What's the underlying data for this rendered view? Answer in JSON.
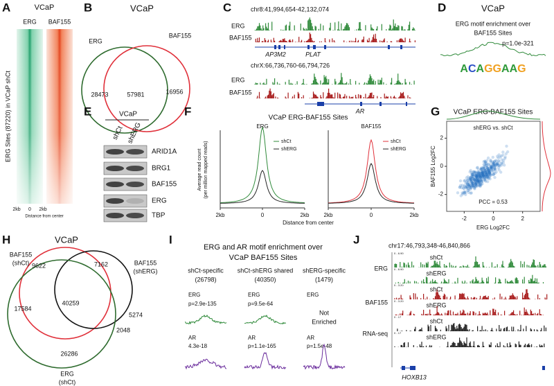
{
  "A": {
    "letter": "A",
    "title": "VCaP",
    "tracks": [
      "ERG",
      "BAF155"
    ],
    "y_label": "ERG Sites (87220) in VCaP shCt",
    "x_ticks": [
      "2kb",
      "0",
      "2kb"
    ],
    "x_label": "Distance from center"
  },
  "B": {
    "letter": "B",
    "title": "VCaP",
    "sets": [
      "ERG",
      "BAF155"
    ],
    "counts": [
      "28473",
      "57981",
      "16956"
    ]
  },
  "C": {
    "letter": "C",
    "loci": [
      {
        "region": "chr8:41,994,654-42,132,074",
        "tracks": [
          "ERG",
          "BAF155"
        ],
        "genes": [
          "AP3M2",
          "PLAT"
        ]
      },
      {
        "region": "chrX:66,736,760-66,794,726",
        "tracks": [
          "ERG",
          "BAF155"
        ],
        "genes": [
          "AR"
        ]
      }
    ]
  },
  "D": {
    "letter": "D",
    "title": "VCaP",
    "subtitle": [
      "ERG motif enrichment over",
      "BAF155 Sites"
    ],
    "p_value": "p=1.0e-321",
    "motif": "ACAGGAAG"
  },
  "E": {
    "letter": "E",
    "cell_line": "VCaP",
    "conditions": [
      "shCt",
      "shERG"
    ],
    "proteins": [
      "ARID1A",
      "BRG1",
      "BAF155",
      "ERG",
      "TBP"
    ]
  },
  "F": {
    "letter": "F",
    "title": "VCaP ERG-BAF155 Sites",
    "y_label": [
      "Average read count",
      "(per million mapped reads)"
    ],
    "x_label": "Distance from center",
    "x_ticks": [
      "2kb",
      "0",
      "2kb"
    ],
    "plots": [
      {
        "title": "ERG",
        "legend": [
          "shCt",
          "shERG"
        ]
      },
      {
        "title": "BAF155",
        "legend": [
          "shCt",
          "shERG"
        ]
      }
    ]
  },
  "G": {
    "letter": "G",
    "title": "VCaP ERG-BAF155 Sites",
    "subtitle": "shERG vs. shCt",
    "x_label": "ERG Log2FC",
    "y_label": "BAF155 Log2FC",
    "xlim": [
      -3.2,
      3.2
    ],
    "ylim": [
      -3.2,
      3.2
    ],
    "x_ticks": [
      -2,
      0,
      2
    ],
    "y_ticks": [
      -2,
      0,
      2
    ],
    "annotation": "PCC = 0.53"
  },
  "H": {
    "letter": "H",
    "title": "VCaP",
    "sets": [
      [
        "BAF155",
        "(shCt)"
      ],
      [
        "BAF155",
        "(shERG)"
      ],
      [
        "ERG",
        "(shCt)"
      ]
    ],
    "counts": [
      "9622",
      "7162",
      "17584",
      "40259",
      "5274",
      "2048",
      "26286"
    ]
  },
  "I": {
    "letter": "I",
    "title": [
      "ERG and AR motif enrichment over",
      "VCaP BAF155 Sites"
    ],
    "groups": [
      {
        "name": "shCt-specific",
        "count": "(26798)",
        "erg": [
          "ERG",
          "p=2.9e-135"
        ],
        "ar": [
          "AR",
          "4.3e-18"
        ]
      },
      {
        "name": "shCt-shERG shared",
        "count": "(40350)",
        "erg": [
          "ERG",
          "p=9.5e-64"
        ],
        "ar": [
          "AR",
          "p=1.1e-165"
        ]
      },
      {
        "name": "shERG-specific",
        "count": "(1479)",
        "erg": [
          "ERG",
          "Not",
          "Enriched"
        ],
        "ar": [
          "AR",
          "p=1.5e-48"
        ]
      }
    ]
  },
  "J": {
    "letter": "J",
    "region": "chr17:46,793,348-46,840,866",
    "groups": [
      {
        "name": "ERG",
        "tracks": [
          {
            "scale": "0 - 6.90",
            "label": "shCt"
          },
          {
            "scale": "0 - 6.90",
            "label": "shERG"
          }
        ]
      },
      {
        "name": "BAF155",
        "tracks": [
          {
            "scale": "0 - 3.20",
            "label": "shCt"
          },
          {
            "scale": "0 - 3.20",
            "label": "shERG"
          }
        ]
      },
      {
        "name": "RNA-seq",
        "tracks": [
          {
            "scale": "0 - 17",
            "label": "shCt"
          },
          {
            "scale": "0 - 17",
            "label": "shERG"
          }
        ]
      }
    ],
    "gene": "HOXB13"
  }
}
